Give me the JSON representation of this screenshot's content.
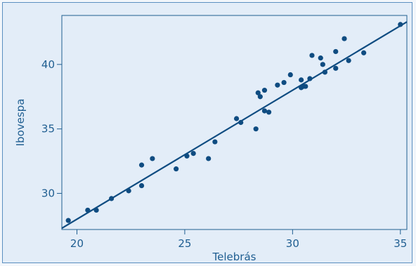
{
  "chart_data": {
    "type": "scatter",
    "title": "",
    "xlabel": "Telebrás",
    "ylabel": "Ibovespa",
    "xlim": [
      19.3,
      35.3
    ],
    "ylim": [
      27.2,
      43.8
    ],
    "grid": false,
    "legend": "none",
    "x_ticks": [
      20,
      25,
      30,
      35
    ],
    "y_ticks": [
      30,
      35,
      40
    ],
    "x_tick_labels": [
      "20",
      "25",
      "30",
      "35"
    ],
    "y_tick_labels": [
      "30",
      "35",
      "40"
    ],
    "colors": {
      "points": "#0f4c81",
      "line": "#0f4c81",
      "axis": "#1f5e91",
      "plot_bg": "#e3edf8"
    },
    "points": [
      [
        19.6,
        27.9
      ],
      [
        20.5,
        28.7
      ],
      [
        20.9,
        28.7
      ],
      [
        21.6,
        29.6
      ],
      [
        22.4,
        30.2
      ],
      [
        23.0,
        30.6
      ],
      [
        23.0,
        32.2
      ],
      [
        23.5,
        32.7
      ],
      [
        24.6,
        31.9
      ],
      [
        25.1,
        32.9
      ],
      [
        25.4,
        33.1
      ],
      [
        26.1,
        32.7
      ],
      [
        26.4,
        34.0
      ],
      [
        27.4,
        35.8
      ],
      [
        27.6,
        35.5
      ],
      [
        28.3,
        35.0
      ],
      [
        28.4,
        37.8
      ],
      [
        28.5,
        37.5
      ],
      [
        28.7,
        36.4
      ],
      [
        28.7,
        38.0
      ],
      [
        28.9,
        36.3
      ],
      [
        29.3,
        38.4
      ],
      [
        29.6,
        38.6
      ],
      [
        29.9,
        39.2
      ],
      [
        30.4,
        38.2
      ],
      [
        30.4,
        38.8
      ],
      [
        30.5,
        38.3
      ],
      [
        30.6,
        38.3
      ],
      [
        30.8,
        38.9
      ],
      [
        30.9,
        40.7
      ],
      [
        31.3,
        40.5
      ],
      [
        31.4,
        40.0
      ],
      [
        31.5,
        39.4
      ],
      [
        32.0,
        41.0
      ],
      [
        32.0,
        39.7
      ],
      [
        32.4,
        42.0
      ],
      [
        32.6,
        40.3
      ],
      [
        33.3,
        40.9
      ],
      [
        35.0,
        43.1
      ]
    ],
    "fit_line": {
      "slope": 1.0,
      "intercept": 8.0
    }
  }
}
